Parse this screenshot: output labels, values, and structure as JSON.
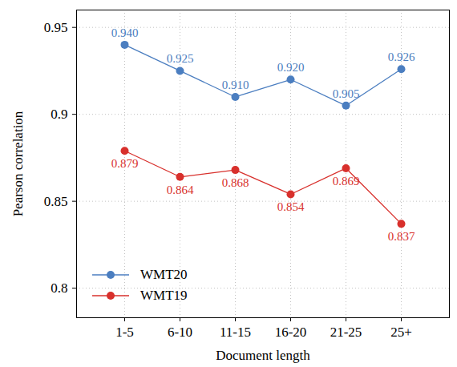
{
  "chart_data": {
    "type": "line",
    "x_label": "Document length",
    "y_label": "Pearson correlation",
    "categories": [
      "1-5",
      "6-10",
      "11-15",
      "16-20",
      "21-25",
      "25+"
    ],
    "series": [
      {
        "name": "WMT20",
        "color": "#4b7ec0",
        "marker": "circle",
        "values": [
          0.94,
          0.925,
          0.91,
          0.92,
          0.905,
          0.926
        ],
        "value_labels": [
          "0.940",
          "0.925",
          "0.910",
          "0.920",
          "0.905",
          "0.926"
        ]
      },
      {
        "name": "WMT19",
        "color": "#d8302c",
        "marker": "circle",
        "values": [
          0.879,
          0.864,
          0.868,
          0.854,
          0.869,
          0.837
        ],
        "value_labels": [
          "0.879",
          "0.864",
          "0.868",
          "0.854",
          "0.869",
          "0.837"
        ]
      }
    ],
    "ylim": [
      0.783,
      0.96
    ],
    "yticks": [
      0.8,
      0.85,
      0.9,
      0.95
    ],
    "grid": true,
    "data_labels": true,
    "legend": "bottom-left"
  }
}
